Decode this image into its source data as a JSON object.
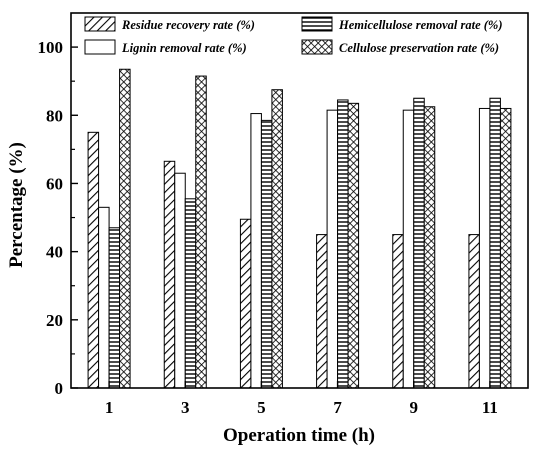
{
  "chart_data": {
    "type": "bar",
    "xlabel": "Operation time (h)",
    "ylabel": "Percentage (%)",
    "ylim": [
      0,
      110
    ],
    "yticks": [
      0,
      20,
      40,
      60,
      80,
      100
    ],
    "categories": [
      "1",
      "3",
      "5",
      "7",
      "9",
      "11"
    ],
    "series": [
      {
        "name": "Residue recovery rate (%)",
        "pattern": "diagonal-hatch",
        "values": [
          75.0,
          66.5,
          49.5,
          45.0,
          45.0,
          45.0
        ]
      },
      {
        "name": "Lignin removal rate  (%)",
        "pattern": "none",
        "values": [
          53.0,
          63.0,
          80.5,
          81.5,
          81.5,
          82.0
        ]
      },
      {
        "name": "Hemicellulose removal rate (%)",
        "pattern": "horizontal-hatch",
        "values": [
          47.0,
          55.5,
          78.5,
          84.5,
          85.0,
          85.0
        ]
      },
      {
        "name": "Cellulose preservation rate (%)",
        "pattern": "crosshatch",
        "values": [
          93.5,
          91.5,
          87.5,
          83.5,
          82.5,
          82.0
        ]
      }
    ],
    "legend": "top, inside plot, two columns",
    "grid": false
  }
}
